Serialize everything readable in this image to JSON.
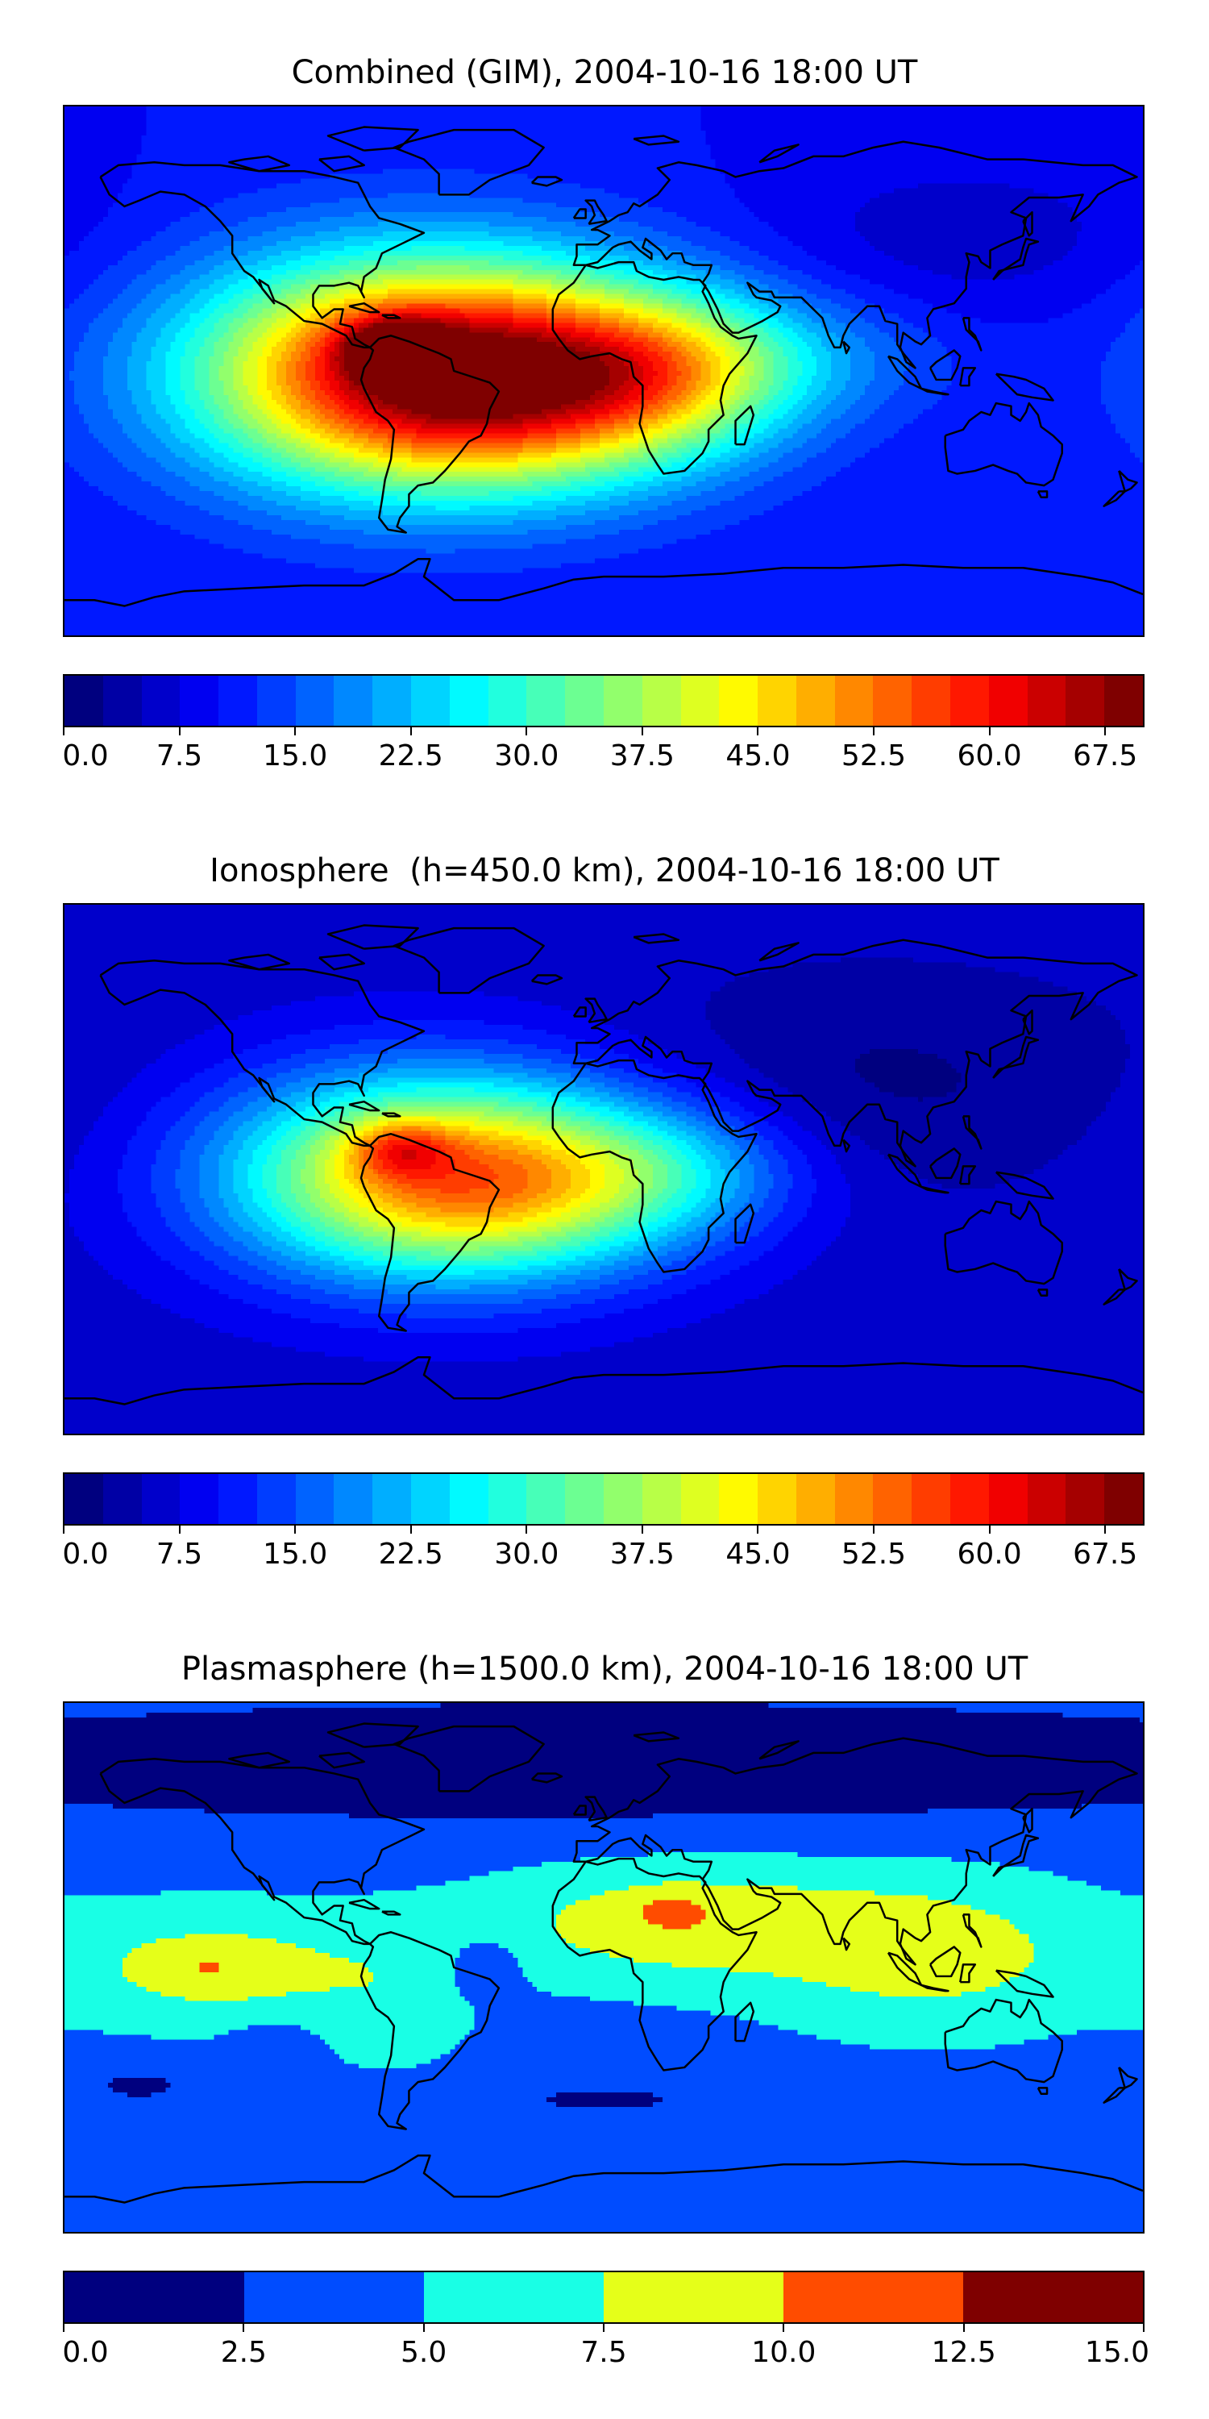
{
  "panels": [
    {
      "id": "combined",
      "title": "Combined (GIM), 2004-10-16 18:00 UT",
      "colorbar": {
        "min": 0.0,
        "max": 70.0,
        "levels": 28,
        "tick_values": [
          0.0,
          7.5,
          15.0,
          22.5,
          30.0,
          37.5,
          45.0,
          52.5,
          60.0,
          67.5
        ],
        "tick_labels": [
          "0.0",
          "7.5",
          "15.0",
          "22.5",
          "30.0",
          "37.5",
          "45.0",
          "52.5",
          "60.0",
          "67.5"
        ]
      },
      "field": {
        "background_level": 10,
        "blobs": [
          {
            "lon": -60,
            "lat": 0,
            "amp": 48,
            "slon": 55,
            "slat": 28
          },
          {
            "lon": -70,
            "lat": 8,
            "amp": 20,
            "slon": 12,
            "slat": 7
          },
          {
            "lon": -25,
            "lat": -5,
            "amp": 22,
            "slon": 50,
            "slat": 22
          },
          {
            "lon": 20,
            "lat": 0,
            "amp": 14,
            "slon": 30,
            "slat": 18
          },
          {
            "lon": 60,
            "lat": 5,
            "amp": 6,
            "slon": 40,
            "slat": 15
          },
          {
            "lon": 120,
            "lat": 45,
            "amp": -4,
            "slon": 50,
            "slat": 20
          }
        ]
      }
    },
    {
      "id": "ionosphere",
      "title": "Ionosphere  (h=450.0 km), 2004-10-16 18:00 UT",
      "colorbar": {
        "min": 0.0,
        "max": 70.0,
        "levels": 28,
        "tick_values": [
          0.0,
          7.5,
          15.0,
          22.5,
          30.0,
          37.5,
          45.0,
          52.5,
          60.0,
          67.5
        ],
        "tick_labels": [
          "0.0",
          "7.5",
          "15.0",
          "22.5",
          "30.0",
          "37.5",
          "45.0",
          "52.5",
          "60.0",
          "67.5"
        ]
      },
      "field": {
        "background_level": 6,
        "blobs": [
          {
            "lon": -58,
            "lat": -2,
            "amp": 36,
            "slon": 50,
            "slat": 25
          },
          {
            "lon": -68,
            "lat": 7,
            "amp": 14,
            "slon": 12,
            "slat": 7
          },
          {
            "lon": -25,
            "lat": -5,
            "amp": 16,
            "slon": 45,
            "slat": 20
          },
          {
            "lon": 25,
            "lat": 0,
            "amp": 8,
            "slon": 30,
            "slat": 15
          },
          {
            "lon": 90,
            "lat": 30,
            "amp": -4,
            "slon": 60,
            "slat": 25
          }
        ]
      }
    },
    {
      "id": "plasmasphere",
      "title": "Plasmasphere (h=1500.0 km), 2004-10-16 18:00 UT",
      "colorbar": {
        "min": 0.0,
        "max": 15.0,
        "levels": 6,
        "tick_values": [
          0.0,
          2.5,
          5.0,
          7.5,
          10.0,
          12.5,
          15.0
        ],
        "tick_labels": [
          "0.0",
          "2.5",
          "5.0",
          "7.5",
          "10.0",
          "12.5",
          "15.0"
        ]
      },
      "field": {
        "background_level": 4.2,
        "blobs": [
          {
            "lon": 25,
            "lat": 15,
            "amp": 5.0,
            "slon": 45,
            "slat": 14
          },
          {
            "lon": 22,
            "lat": 20,
            "amp": 2.0,
            "slon": 8,
            "slat": 4
          },
          {
            "lon": 110,
            "lat": 5,
            "amp": 4.4,
            "slon": 38,
            "slat": 18
          },
          {
            "lon": -130,
            "lat": 0,
            "amp": 4.5,
            "slon": 35,
            "slat": 14
          },
          {
            "lon": -132,
            "lat": 0,
            "amp": 1.6,
            "slon": 6,
            "slat": 3
          },
          {
            "lon": -70,
            "lat": -10,
            "amp": 2.0,
            "slon": 20,
            "slat": 18
          },
          {
            "lon": -40,
            "lat": 0,
            "amp": -2.8,
            "slon": 8,
            "slat": 7
          },
          {
            "lon": 0,
            "lat": 70,
            "amp": -4.0,
            "slon": 200,
            "slat": 15
          },
          {
            "lon": 0,
            "lat": -45,
            "amp": -2.0,
            "slon": 35,
            "slat": 5
          },
          {
            "lon": -155,
            "lat": -40,
            "amp": -2.0,
            "slon": 20,
            "slat": 7
          },
          {
            "lon": -110,
            "lat": -25,
            "amp": -1.8,
            "slon": 10,
            "slat": 5
          }
        ]
      }
    }
  ],
  "colormap_anchors": [
    "#00007f",
    "#0000ff",
    "#007fff",
    "#00ffff",
    "#7fff7f",
    "#ffff00",
    "#ff7f00",
    "#ff0000",
    "#7f0000"
  ],
  "coastline_color": "#000000"
}
